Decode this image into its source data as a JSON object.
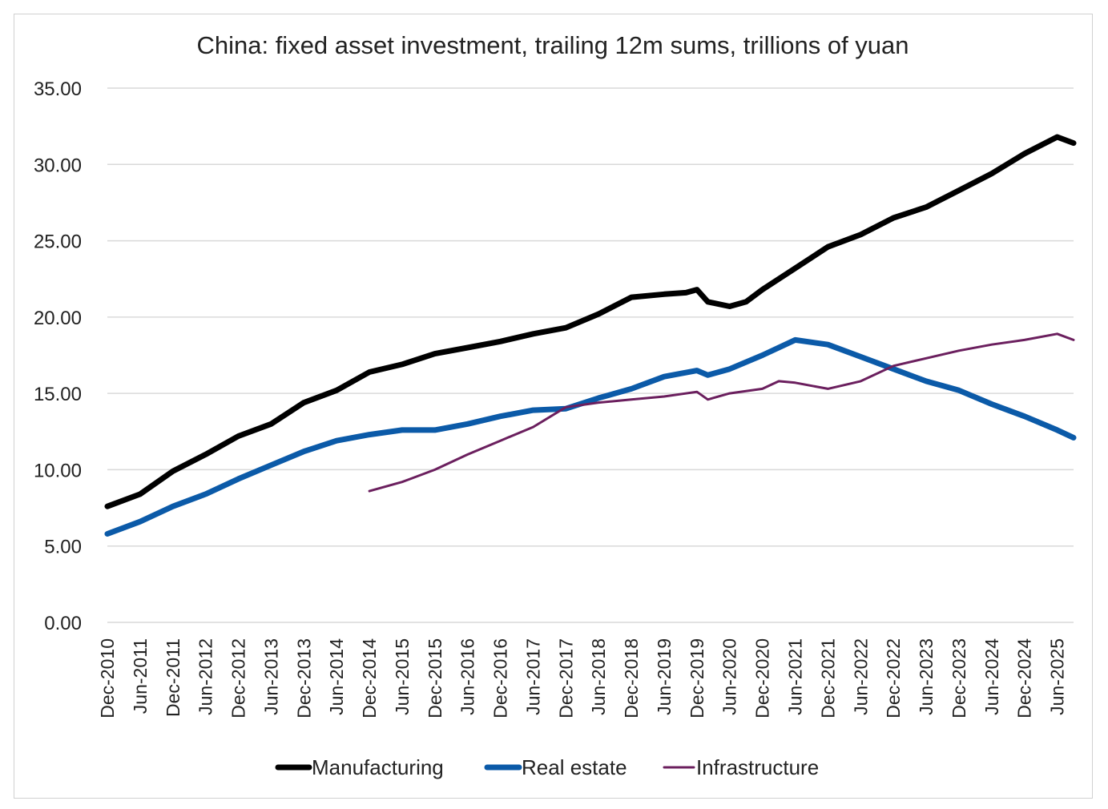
{
  "chart_data": {
    "type": "line",
    "title": "China: fixed asset investment, trailing 12m sums, trillions of yuan",
    "xlabel": "",
    "ylabel": "",
    "ylim": [
      0,
      35
    ],
    "yticks": [
      "0.00",
      "5.00",
      "10.00",
      "15.00",
      "20.00",
      "25.00",
      "30.00",
      "35.00"
    ],
    "x_start": "Dec-2010",
    "x_end": "Sep-2025",
    "x_tick_labels": [
      "Dec-2010",
      "Jun-2011",
      "Dec-2011",
      "Jun-2012",
      "Dec-2012",
      "Jun-2013",
      "Dec-2013",
      "Jun-2014",
      "Dec-2014",
      "Jun-2015",
      "Dec-2015",
      "Jun-2016",
      "Dec-2016",
      "Jun-2017",
      "Dec-2017",
      "Jun-2018",
      "Dec-2018",
      "Jun-2019",
      "Dec-2019",
      "Jun-2020",
      "Dec-2020",
      "Jun-2021",
      "Dec-2021",
      "Jun-2022",
      "Dec-2022",
      "Jun-2023",
      "Dec-2023",
      "Jun-2024",
      "Dec-2024",
      "Jun-2025"
    ],
    "grid": true,
    "legend_position": "bottom",
    "series": [
      {
        "name": "Manufacturing",
        "color": "#000000",
        "style": "thick",
        "points": [
          [
            "Dec-2010",
            7.6
          ],
          [
            "Jun-2011",
            8.4
          ],
          [
            "Dec-2011",
            9.9
          ],
          [
            "Jun-2012",
            11.0
          ],
          [
            "Dec-2012",
            12.2
          ],
          [
            "Jun-2013",
            13.0
          ],
          [
            "Dec-2013",
            14.4
          ],
          [
            "Jun-2014",
            15.2
          ],
          [
            "Dec-2014",
            16.4
          ],
          [
            "Jun-2015",
            16.9
          ],
          [
            "Dec-2015",
            17.6
          ],
          [
            "Jun-2016",
            18.0
          ],
          [
            "Dec-2016",
            18.4
          ],
          [
            "Jun-2017",
            18.9
          ],
          [
            "Dec-2017",
            19.3
          ],
          [
            "Jun-2018",
            20.2
          ],
          [
            "Dec-2018",
            21.3
          ],
          [
            "Jun-2019",
            21.5
          ],
          [
            "Oct-2019",
            21.6
          ],
          [
            "Dec-2019",
            21.8
          ],
          [
            "Feb-2020",
            21.0
          ],
          [
            "Jun-2020",
            20.7
          ],
          [
            "Sep-2020",
            21.0
          ],
          [
            "Dec-2020",
            21.8
          ],
          [
            "Jun-2021",
            23.2
          ],
          [
            "Dec-2021",
            24.6
          ],
          [
            "Jun-2022",
            25.4
          ],
          [
            "Dec-2022",
            26.5
          ],
          [
            "Jun-2023",
            27.2
          ],
          [
            "Dec-2023",
            28.3
          ],
          [
            "Jun-2024",
            29.4
          ],
          [
            "Dec-2024",
            30.7
          ],
          [
            "Jun-2025",
            31.8
          ],
          [
            "Sep-2025",
            31.4
          ]
        ]
      },
      {
        "name": "Real estate",
        "color": "#0b5aa8",
        "style": "thick",
        "points": [
          [
            "Dec-2010",
            5.8
          ],
          [
            "Jun-2011",
            6.6
          ],
          [
            "Dec-2011",
            7.6
          ],
          [
            "Jun-2012",
            8.4
          ],
          [
            "Dec-2012",
            9.4
          ],
          [
            "Jun-2013",
            10.3
          ],
          [
            "Dec-2013",
            11.2
          ],
          [
            "Jun-2014",
            11.9
          ],
          [
            "Dec-2014",
            12.3
          ],
          [
            "Jun-2015",
            12.6
          ],
          [
            "Dec-2015",
            12.6
          ],
          [
            "Jun-2016",
            13.0
          ],
          [
            "Dec-2016",
            13.5
          ],
          [
            "Jun-2017",
            13.9
          ],
          [
            "Dec-2017",
            14.0
          ],
          [
            "Jun-2018",
            14.7
          ],
          [
            "Dec-2018",
            15.3
          ],
          [
            "Jun-2019",
            16.1
          ],
          [
            "Dec-2019",
            16.5
          ],
          [
            "Feb-2020",
            16.2
          ],
          [
            "Jun-2020",
            16.6
          ],
          [
            "Dec-2020",
            17.5
          ],
          [
            "Jun-2021",
            18.5
          ],
          [
            "Dec-2021",
            18.2
          ],
          [
            "Jun-2022",
            17.4
          ],
          [
            "Dec-2022",
            16.6
          ],
          [
            "Jun-2023",
            15.8
          ],
          [
            "Dec-2023",
            15.2
          ],
          [
            "Jun-2024",
            14.3
          ],
          [
            "Dec-2024",
            13.5
          ],
          [
            "Jun-2025",
            12.6
          ],
          [
            "Sep-2025",
            12.1
          ]
        ]
      },
      {
        "name": "Infrastructure",
        "color": "#6b1f5e",
        "style": "thin",
        "points": [
          [
            "Dec-2014",
            8.6
          ],
          [
            "Jun-2015",
            9.2
          ],
          [
            "Dec-2015",
            10.0
          ],
          [
            "Jun-2016",
            11.0
          ],
          [
            "Dec-2016",
            11.9
          ],
          [
            "Jun-2017",
            12.8
          ],
          [
            "Dec-2017",
            14.1
          ],
          [
            "Jun-2018",
            14.4
          ],
          [
            "Dec-2018",
            14.6
          ],
          [
            "Jun-2019",
            14.8
          ],
          [
            "Dec-2019",
            15.1
          ],
          [
            "Feb-2020",
            14.6
          ],
          [
            "Jun-2020",
            15.0
          ],
          [
            "Dec-2020",
            15.3
          ],
          [
            "Mar-2021",
            15.8
          ],
          [
            "Jun-2021",
            15.7
          ],
          [
            "Dec-2021",
            15.3
          ],
          [
            "Jun-2022",
            15.8
          ],
          [
            "Dec-2022",
            16.8
          ],
          [
            "Jun-2023",
            17.3
          ],
          [
            "Dec-2023",
            17.8
          ],
          [
            "Jun-2024",
            18.2
          ],
          [
            "Dec-2024",
            18.5
          ],
          [
            "Jun-2025",
            18.9
          ],
          [
            "Sep-2025",
            18.5
          ]
        ]
      }
    ]
  }
}
